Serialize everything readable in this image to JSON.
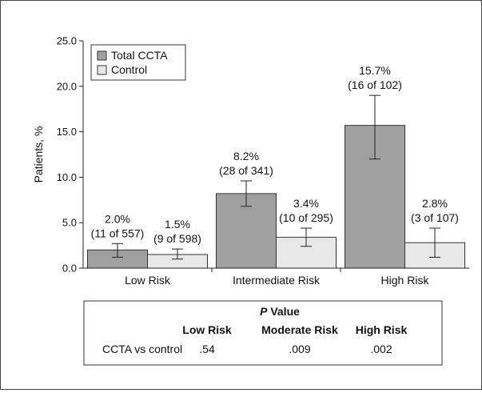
{
  "chart_data": {
    "type": "bar",
    "ylabel": "Patients, %",
    "ylim": [
      0,
      25
    ],
    "yticks": [
      "0.0",
      "5.0",
      "10.0",
      "15.0",
      "20.0",
      "25.0"
    ],
    "categories": [
      "Low Risk",
      "Intermediate Risk",
      "High Risk"
    ],
    "legend_position": "top-left",
    "series": [
      {
        "name": "Total CCTA",
        "color": "#a0a0a0",
        "values": [
          2.0,
          8.2,
          15.7
        ],
        "error_low": [
          1.2,
          6.8,
          12.0
        ],
        "error_high": [
          2.7,
          9.6,
          19.0
        ],
        "labels": [
          "2.0%",
          "8.2%",
          "15.7%"
        ],
        "counts": [
          "(11 of 557)",
          "(28 of 341)",
          "(16 of 102)"
        ]
      },
      {
        "name": "Control",
        "color": "#e8e8e8",
        "values": [
          1.5,
          3.4,
          2.8
        ],
        "error_low": [
          1.0,
          2.4,
          1.2
        ],
        "error_high": [
          2.1,
          4.4,
          4.4
        ],
        "labels": [
          "1.5%",
          "3.4%",
          "2.8%"
        ],
        "counts": [
          "(9 of 598)",
          "(10 of 295)",
          "(3 of 107)"
        ]
      }
    ]
  },
  "pvalue_table": {
    "title_italic": "P",
    "title_rest": " Value",
    "columns": [
      "Low Risk",
      "Moderate Risk",
      "High Risk"
    ],
    "row_label": "CCTA vs control",
    "values": [
      ".54",
      ".009",
      ".002"
    ]
  }
}
